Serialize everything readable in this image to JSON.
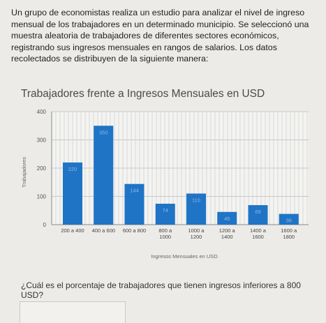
{
  "problem_text": "Un grupo de economistas realiza un estudio para analizar el nivel de ingreso mensual de los trabajadores en un determinado municipio. Se seleccionó una muestra aleatoria de trabajadores de diferentes sectores económicos, registrando sus ingresos mensuales en rangos de salarios. Los datos recolectados se distribuyen de la siguiente manera:",
  "question_text": "¿Cuál es el porcentaje de trabajadores que tienen ingresos inferiores a 800 USD?",
  "answer": {
    "value": ""
  },
  "colors": {
    "bar": "#1f74c6",
    "grid": "#d9d9d9",
    "axis": "#888888"
  },
  "chart_data": {
    "type": "bar",
    "title": "Trabajadores frente a Ingresos Mensuales en USD",
    "xlabel": "Ingresos Mensuales en USD",
    "ylabel": "Trabajadores",
    "categories": [
      "200 a 400",
      "400 a 600",
      "600 a 800",
      "800 a 1000",
      "1000 a 1200",
      "1200 a 1400",
      "1400 a 1600",
      "1600 a 1800"
    ],
    "values": [
      220,
      350,
      144,
      74,
      110,
      45,
      69,
      38
    ],
    "ylim": [
      0,
      400
    ],
    "yticks": [
      0,
      100,
      200,
      300,
      400
    ],
    "grid": true
  }
}
